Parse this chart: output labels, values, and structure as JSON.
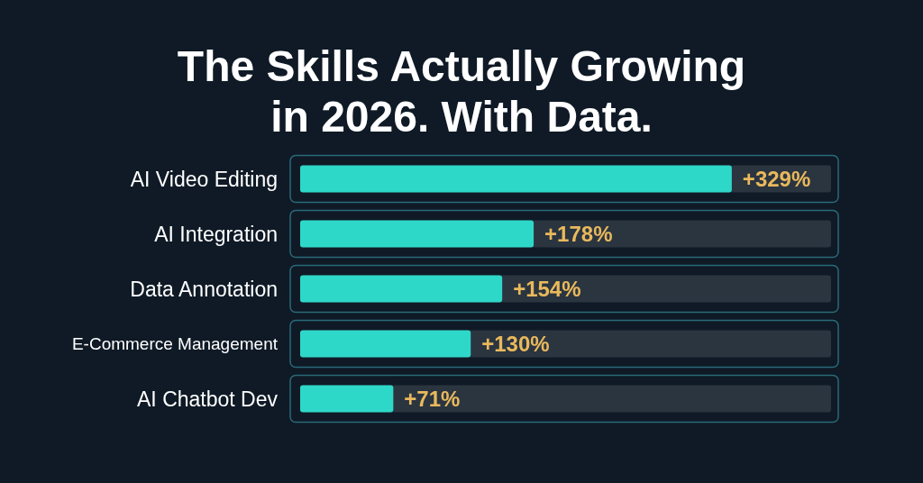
{
  "chart_data": {
    "type": "bar",
    "orientation": "horizontal",
    "title": "The Skills Actually Growing in 2026. With Data.",
    "categories": [
      "AI Video Editing",
      "AI Integration",
      "Data Annotation",
      "E-Commerce Management",
      "AI Chatbot Dev"
    ],
    "values": [
      329,
      178,
      154,
      130,
      71
    ],
    "value_labels": [
      "+329%",
      "+178%",
      "+154%",
      "+130%",
      "+71%"
    ],
    "color": "#2ed8c8"
  }
}
